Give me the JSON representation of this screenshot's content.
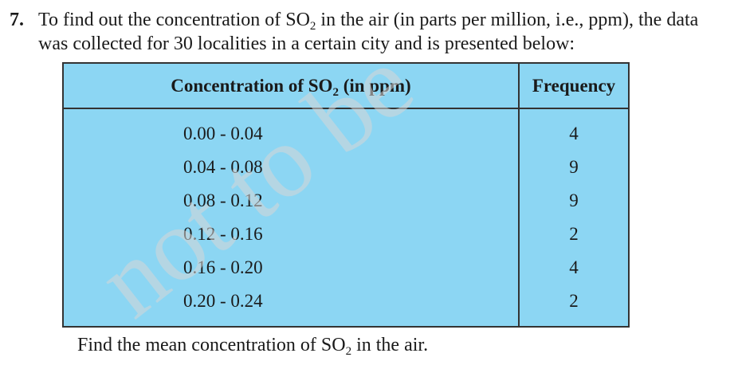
{
  "question": {
    "number": "7.",
    "text_part1": "To find out the concentration of SO",
    "sub1": "2",
    "text_part2": " in the air (in parts per million, i.e., ppm), the data",
    "line2": "was collected for 30 localities in a certain city and is presented below:"
  },
  "table": {
    "header_col1_part1": "Concentration of SO",
    "header_col1_sub": "2",
    "header_col1_part2": " (in ppm)",
    "header_col2": "Frequency",
    "rows": [
      {
        "range": "0.00 - 0.04",
        "frequency": "4"
      },
      {
        "range": "0.04 - 0.08",
        "frequency": "9"
      },
      {
        "range": "0.08 - 0.12",
        "frequency": "9"
      },
      {
        "range": "0.12 - 0.16",
        "frequency": "2"
      },
      {
        "range": "0.16 - 0.20",
        "frequency": "4"
      },
      {
        "range": "0.20 - 0.24",
        "frequency": "2"
      }
    ]
  },
  "footer": {
    "part1": "Find the mean concentration of SO",
    "sub": "2",
    "part2": " in the air."
  },
  "watermark": "not to be"
}
